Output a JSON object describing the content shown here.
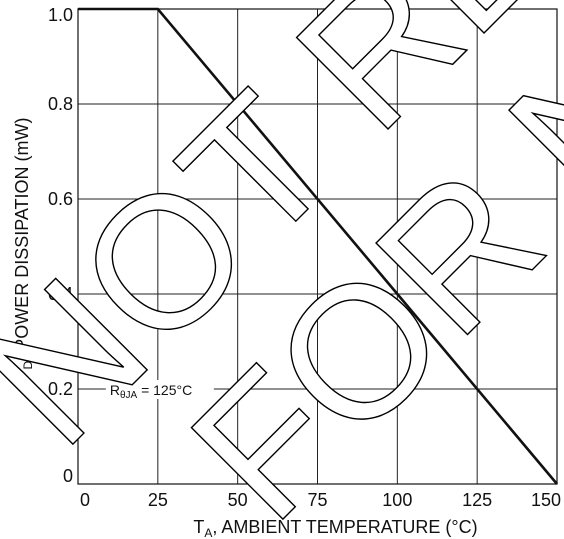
{
  "chart_data": {
    "type": "line",
    "title": "",
    "xlabel": {
      "main": "T",
      "sub": "A",
      "rest": ", AMBIENT TEMPERATURE (°C)"
    },
    "ylabel": {
      "main": "P",
      "sub": "D",
      "rest": ", POWER DISSIPATION (mW)"
    },
    "xlim": [
      0,
      150
    ],
    "ylim": [
      0,
      1.0
    ],
    "x_ticks": [
      0,
      25,
      50,
      75,
      100,
      125,
      150
    ],
    "x_tick_labels": [
      "0",
      "25",
      "50",
      "75",
      "100",
      "125",
      "150"
    ],
    "y_ticks": [
      0,
      0.2,
      0.4,
      0.6,
      0.8,
      1.0
    ],
    "y_tick_labels": [
      "0",
      "0.2",
      "0.4",
      "0.6",
      "0.8",
      "1.0"
    ],
    "grid": true,
    "series": [
      {
        "x": [
          0,
          25,
          150
        ],
        "y": [
          1.0,
          1.0,
          0
        ],
        "color": "#111111"
      }
    ],
    "annotation": {
      "main": "R",
      "sub": "θJA",
      "rest": " = 125°C",
      "x": 25,
      "y": 0.2
    },
    "watermark": {
      "line1": "NOT RECO",
      "line2": "FOR NE"
    }
  }
}
